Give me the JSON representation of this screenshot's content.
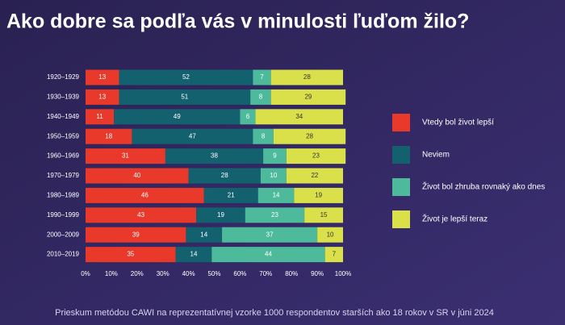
{
  "chart_data": {
    "type": "stacked-bar-horizontal",
    "title": "Ako dobre sa podľa vás v minulosti ľuďom žilo?",
    "footnote": "Prieskum metódou CAWI na reprezentatívnej vzorke 1000 respondentov starších ako 18 rokov v SR v júni 2024",
    "categories": [
      "1920–1929",
      "1930–1939",
      "1940–1949",
      "1950–1959",
      "1960–1969",
      "1970–1979",
      "1980–1989",
      "1990–1999",
      "2000–2009",
      "2010–2019"
    ],
    "series": [
      {
        "name": "Vtedy bol život lepší",
        "color": "#e8392a",
        "values": [
          13,
          13,
          11,
          18,
          31,
          40,
          46,
          43,
          39,
          35
        ]
      },
      {
        "name": "Neviem",
        "color": "#13606e",
        "values": [
          52,
          51,
          49,
          47,
          38,
          28,
          21,
          19,
          14,
          14
        ]
      },
      {
        "name": "Život bol zhruba rovnaký ako dnes",
        "color": "#4dbb9b",
        "values": [
          7,
          8,
          6,
          8,
          9,
          10,
          14,
          23,
          37,
          44
        ]
      },
      {
        "name": "Život je lepší teraz",
        "color": "#d9e04a",
        "values": [
          28,
          29,
          34,
          28,
          23,
          22,
          19,
          15,
          10,
          7
        ]
      }
    ],
    "xlim": [
      0,
      100
    ],
    "xticks": [
      {
        "value": 0,
        "label": "0%"
      },
      {
        "value": 10,
        "label": "10%"
      },
      {
        "value": 20,
        "label": "20%"
      },
      {
        "value": 30,
        "label": "30%"
      },
      {
        "value": 40,
        "label": "40%"
      },
      {
        "value": 50,
        "label": "50%"
      },
      {
        "value": 60,
        "label": "60%"
      },
      {
        "value": 70,
        "label": "70%"
      },
      {
        "value": 80,
        "label": "80%"
      },
      {
        "value": 90,
        "label": "90%"
      },
      {
        "value": 100,
        "label": "100%"
      }
    ],
    "legend": "right"
  }
}
